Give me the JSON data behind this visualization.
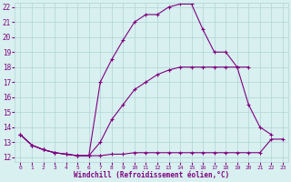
{
  "xlabel": "Windchill (Refroidissement éolien,°C)",
  "line_color": "#800080",
  "bg_color": "#d8f0f0",
  "grid_color": "#b0d4d4",
  "xlim": [
    -0.5,
    23.5
  ],
  "ylim": [
    11.7,
    22.3
  ],
  "yticks": [
    12,
    13,
    14,
    15,
    16,
    17,
    18,
    19,
    20,
    21,
    22
  ],
  "xticks": [
    0,
    1,
    2,
    3,
    4,
    5,
    6,
    7,
    8,
    9,
    10,
    11,
    12,
    13,
    14,
    15,
    16,
    17,
    18,
    19,
    20,
    21,
    22,
    23
  ],
  "line1_x": [
    0,
    1,
    2,
    3,
    4,
    5,
    6,
    7,
    8,
    9,
    10,
    11,
    12,
    13,
    14,
    15,
    16,
    17,
    18,
    19,
    20,
    21,
    22,
    23
  ],
  "line1_y": [
    13.5,
    12.8,
    12.5,
    12.3,
    12.2,
    12.1,
    12.1,
    12.1,
    12.2,
    12.2,
    12.3,
    12.3,
    12.3,
    12.3,
    12.3,
    12.3,
    12.3,
    12.3,
    12.3,
    12.3,
    12.3,
    12.3,
    13.2,
    13.2
  ],
  "line2_x": [
    0,
    1,
    2,
    3,
    4,
    5,
    6,
    7,
    8,
    9,
    10,
    11,
    12,
    13,
    14,
    15,
    16,
    17,
    18,
    19,
    20,
    21,
    22
  ],
  "line2_y": [
    13.5,
    12.8,
    12.5,
    12.3,
    12.2,
    12.1,
    12.1,
    17.0,
    18.5,
    19.8,
    21.0,
    21.5,
    21.5,
    22.0,
    22.2,
    22.2,
    20.5,
    19.0,
    19.0,
    18.0,
    15.5,
    14.0,
    13.5
  ],
  "line3_x": [
    0,
    1,
    2,
    3,
    4,
    5,
    6,
    7,
    8,
    9,
    10,
    11,
    12,
    13,
    14,
    15,
    16,
    17,
    18,
    19,
    20
  ],
  "line3_y": [
    13.5,
    12.8,
    12.5,
    12.3,
    12.2,
    12.1,
    12.1,
    13.0,
    14.5,
    15.5,
    16.5,
    17.0,
    17.5,
    17.8,
    18.0,
    18.0,
    18.0,
    18.0,
    18.0,
    18.0,
    18.0
  ]
}
